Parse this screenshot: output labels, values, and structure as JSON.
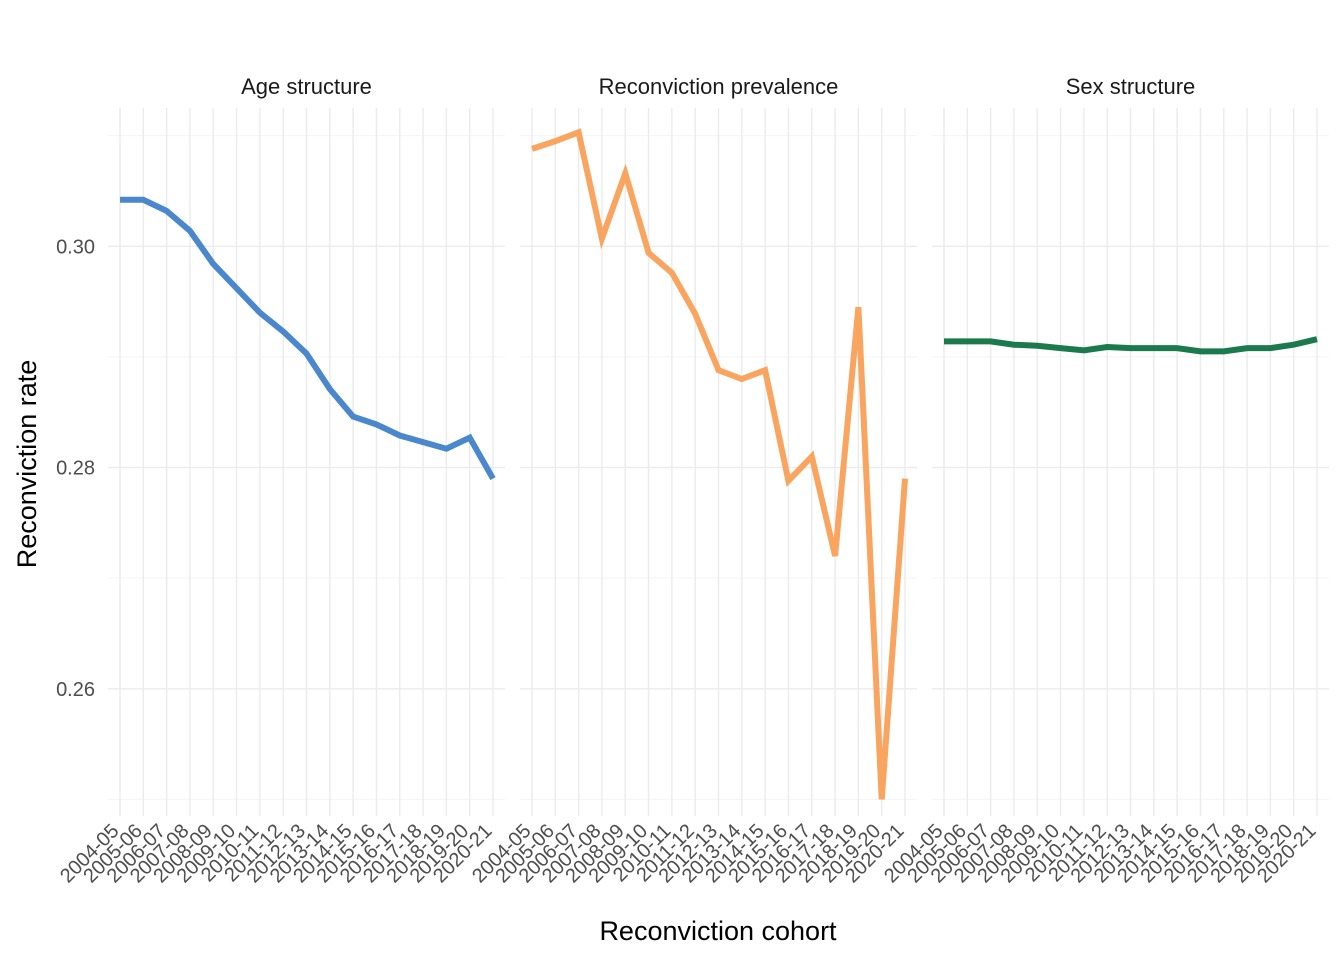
{
  "chart_data": {
    "type": "line",
    "facet_layout": "1x3",
    "xlabel": "Reconviction cohort",
    "ylabel": "Reconviction rate",
    "ylim": [
      0.2485,
      0.3125
    ],
    "yticks": [
      0.26,
      0.28,
      0.3
    ],
    "ytick_labels": [
      "0.26",
      "0.28",
      "0.30"
    ],
    "grid": true,
    "legend": "none",
    "categories": [
      "2004-05",
      "2005-06",
      "2006-07",
      "2007-08",
      "2008-09",
      "2009-10",
      "2010-11",
      "2011-12",
      "2012-13",
      "2013-14",
      "2014-15",
      "2015-16",
      "2016-17",
      "2017-18",
      "2018-19",
      "2019-20",
      "2020-21"
    ],
    "panels": [
      {
        "title": "Age structure",
        "color": "#4a87cc",
        "values": [
          0.3042,
          0.3042,
          0.3032,
          0.3014,
          0.2984,
          0.2962,
          0.294,
          0.2923,
          0.2903,
          0.2871,
          0.2846,
          0.2839,
          0.2829,
          0.2823,
          0.2817,
          0.2827,
          0.279
        ]
      },
      {
        "title": "Reconviction prevalence",
        "color": "#f9a45f",
        "values": [
          0.3088,
          0.3095,
          0.3103,
          0.3007,
          0.3066,
          0.2994,
          0.2976,
          0.2939,
          0.2888,
          0.288,
          0.2888,
          0.2788,
          0.281,
          0.272,
          0.2945,
          0.25,
          0.279
        ]
      },
      {
        "title": "Sex structure",
        "color": "#1b7a4d",
        "values": [
          0.2914,
          0.2914,
          0.2914,
          0.2911,
          0.291,
          0.2908,
          0.2906,
          0.2909,
          0.2908,
          0.2908,
          0.2908,
          0.2905,
          0.2905,
          0.2908,
          0.2908,
          0.2911,
          0.2916
        ]
      }
    ]
  }
}
